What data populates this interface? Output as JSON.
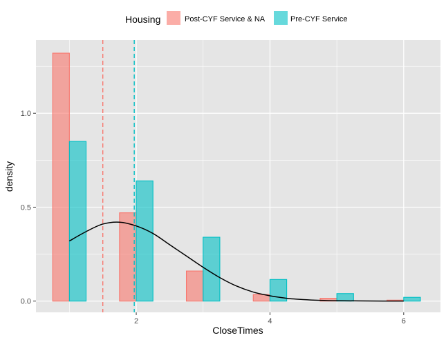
{
  "chart_data": {
    "type": "bar",
    "xlabel": "CloseTimes",
    "ylabel": "density",
    "xlim": [
      0.5,
      6.55
    ],
    "ylim": [
      -0.06,
      1.39
    ],
    "x_ticks": [
      2,
      4,
      6
    ],
    "y_ticks": [
      0.0,
      0.5,
      1.0
    ],
    "y_tick_labels": [
      "0.0",
      "0.5",
      "1.0"
    ],
    "x_minor_ticks": [
      1,
      3,
      5
    ],
    "y_minor_ticks": [
      0.25,
      0.75,
      1.25
    ],
    "grid": true,
    "legend": {
      "title": "Housing",
      "position": "top"
    },
    "bin_edges": [
      0.75,
      1.25,
      1.75,
      2.25,
      2.75,
      3.25,
      3.75,
      4.25,
      4.75,
      5.25,
      5.75,
      6.25
    ],
    "series": [
      {
        "name": "Post-CYF Service & NA",
        "fill": "#f8766d",
        "stroke": "#f8766d",
        "values": [
          1.32,
          0.0,
          0.47,
          0.0,
          0.16,
          0.0,
          0.035,
          0.0,
          0.015,
          0.0,
          0.005
        ]
      },
      {
        "name": "Pre-CYF Service",
        "fill": "#00bfc4",
        "stroke": "#00bfc4",
        "values": [
          0.85,
          0.0,
          0.64,
          0.0,
          0.34,
          0.0,
          0.115,
          0.0,
          0.04,
          0.0,
          0.02
        ]
      }
    ],
    "mean_lines": [
      {
        "series": "Post-CYF Service & NA",
        "x": 1.5,
        "color": "#f8766d"
      },
      {
        "series": "Pre-CYF Service",
        "x": 1.97,
        "color": "#00bfc4"
      }
    ],
    "density_curve": {
      "color": "#000000",
      "x_start": 1.0,
      "x_end": 6.0,
      "points": [
        [
          1.0,
          0.32
        ],
        [
          1.25,
          0.37
        ],
        [
          1.5,
          0.41
        ],
        [
          1.75,
          0.42
        ],
        [
          2.0,
          0.4
        ],
        [
          2.25,
          0.36
        ],
        [
          2.5,
          0.3
        ],
        [
          2.75,
          0.24
        ],
        [
          3.0,
          0.18
        ],
        [
          3.25,
          0.125
        ],
        [
          3.5,
          0.08
        ],
        [
          3.75,
          0.048
        ],
        [
          4.0,
          0.028
        ],
        [
          4.25,
          0.015
        ],
        [
          4.5,
          0.008
        ],
        [
          4.75,
          0.004
        ],
        [
          5.0,
          0.002
        ],
        [
          5.5,
          0.0005
        ],
        [
          6.0,
          0.0
        ]
      ]
    },
    "panel_background": "#e5e5e5",
    "gridline_color": "#ffffff"
  }
}
